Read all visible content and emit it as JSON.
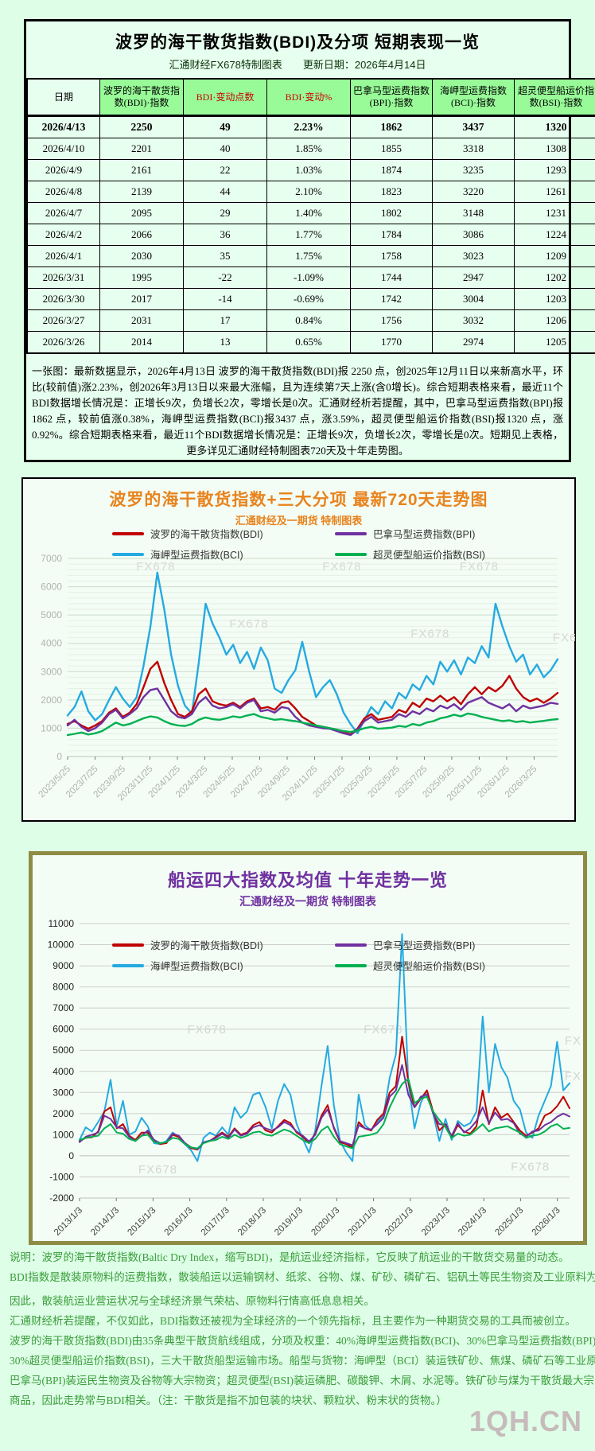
{
  "page": {
    "background": "#defee7",
    "watermark": "1QH.CN"
  },
  "colors": {
    "bdi_red": "#c00000",
    "bpi_purple": "#7030a0",
    "bci_cyan": "#25aae1",
    "bsi_green": "#00b050",
    "header_green": "#98fb98",
    "change_header_red": "#cc0000",
    "chart720_accent": "#e8831d",
    "chart10y_accent": "#7030a0",
    "footer_green": "#3a9d3a"
  },
  "table_panel": {
    "title": "波罗的海干散货指数(BDI)及分项  短期表现一览",
    "subtitle": "汇通财经FX678特制图表　　更新日期：2026年4月14日",
    "headers": [
      "日期",
      "波罗的海干散货指数(BDI)·指数",
      "BDI·变动点数",
      "BDI·变动%",
      "巴拿马型运费指数(BPI)·指数",
      "海岬型运费指数(BCI)·指数",
      "超灵便型船运价指数(BSI)·指数"
    ],
    "red_header_indexes": [
      2,
      3
    ],
    "green_header_indexes": [
      1,
      2,
      3,
      4,
      5,
      6
    ],
    "rows": [
      [
        "2026/4/13",
        "2250",
        "49",
        "2.23%",
        "1862",
        "3437",
        "1320"
      ],
      [
        "2026/4/10",
        "2201",
        "40",
        "1.85%",
        "1855",
        "3318",
        "1308"
      ],
      [
        "2026/4/9",
        "2161",
        "22",
        "1.03%",
        "1874",
        "3235",
        "1293"
      ],
      [
        "2026/4/8",
        "2139",
        "44",
        "2.10%",
        "1823",
        "3220",
        "1261"
      ],
      [
        "2026/4/7",
        "2095",
        "29",
        "1.40%",
        "1802",
        "3148",
        "1231"
      ],
      [
        "2026/4/2",
        "2066",
        "36",
        "1.77%",
        "1784",
        "3086",
        "1224"
      ],
      [
        "2026/4/1",
        "2030",
        "35",
        "1.75%",
        "1758",
        "3023",
        "1209"
      ],
      [
        "2026/3/31",
        "1995",
        "-22",
        "-1.09%",
        "1744",
        "2947",
        "1202"
      ],
      [
        "2026/3/30",
        "2017",
        "-14",
        "-0.69%",
        "1742",
        "3004",
        "1203"
      ],
      [
        "2026/3/27",
        "2031",
        "17",
        "0.84%",
        "1756",
        "3032",
        "1206"
      ],
      [
        "2026/3/26",
        "2014",
        "13",
        "0.65%",
        "1770",
        "2974",
        "1205"
      ]
    ],
    "note": "一张图：最新数据显示，2026年4月13日 波罗的海干散货指数(BDI)报 2250 点，创2025年12月11日以来新高水平，环比(较前值)涨2.23%，创2026年3月13日以来最大涨幅，且为连续第7天上涨(含0增长)。综合短期表格来看，最近11个BDI数据增长情况是：正增长9次，负增长2次，零增长是0次。汇通财经析若提醒，其中，巴拿马型运费指数(BPI)报 1862 点，较前值涨0.38%，海岬型运费指数(BCI)报3437 点，涨3.59%，超灵便型船运价指数(BSI)报1320 点，涨0.92%。综合短期表格来看，最近11个BDI数据增长情况是：正增长9次，负增长2次，零增长是0次。短期见上表格，更多详见汇通财经特制图表720天及十年走势图。"
  },
  "chart_data": [
    {
      "type": "line",
      "title": "波罗的海干散货指数+三大分项  最新720天走势图",
      "subtitle": "汇通财经及一期货 特制图表",
      "title_color": "#e8831d",
      "legend_position": "top",
      "grid": true,
      "ylim": [
        0,
        7000
      ],
      "y_tick_step": 1000,
      "minor_grid_step": 200,
      "x_tick_span": 0.952,
      "x_tick_labels": [
        "2023/5/25",
        "2023/7/25",
        "2023/9/25",
        "2023/11/25",
        "2024/1/25",
        "2024/3/25",
        "2024/5/25",
        "2024/7/25",
        "2024/9/25",
        "2024/11/25",
        "2025/1/25",
        "2025/3/25",
        "2025/5/25",
        "2025/7/25",
        "2025/9/25",
        "2025/11/25",
        "2026/1/25",
        "2026/3/25"
      ],
      "watermark_text": "FX678",
      "watermark_positions": [
        [
          0.14,
          0.06
        ],
        [
          0.52,
          0.06
        ],
        [
          0.8,
          0.06
        ],
        [
          0.33,
          0.35
        ],
        [
          0.7,
          0.4
        ],
        [
          0.99,
          0.42
        ]
      ],
      "series": [
        {
          "name": "波罗的海干散货指数(BDI)",
          "color": "#c00000",
          "values": [
            1150,
            1250,
            1100,
            980,
            1100,
            1250,
            1550,
            1700,
            1400,
            1550,
            1850,
            2450,
            3100,
            3350,
            2600,
            2000,
            1500,
            1400,
            1600,
            2200,
            2400,
            1950,
            1850,
            1800,
            1900,
            1750,
            1950,
            2050,
            1700,
            1750,
            1650,
            1900,
            1950,
            1700,
            1400,
            1250,
            1100,
            1050,
            1000,
            950,
            850,
            790,
            980,
            1350,
            1500,
            1300,
            1350,
            1400,
            1650,
            1550,
            1900,
            1750,
            2050,
            1950,
            2150,
            1950,
            2100,
            1850,
            2200,
            2450,
            2200,
            2450,
            2300,
            2500,
            2850,
            2400,
            2100,
            1950,
            2050,
            1900,
            2050,
            2250
          ]
        },
        {
          "name": "巴拿马型运费指数(BPI)",
          "color": "#7030a0",
          "values": [
            1100,
            1300,
            1050,
            900,
            1000,
            1200,
            1500,
            1650,
            1350,
            1500,
            1700,
            2100,
            2350,
            2400,
            2000,
            1600,
            1400,
            1350,
            1500,
            1900,
            2100,
            1800,
            1700,
            1750,
            1850,
            1700,
            1900,
            2000,
            1600,
            1650,
            1550,
            1750,
            1700,
            1400,
            1200,
            1100,
            1050,
            1000,
            980,
            900,
            820,
            760,
            950,
            1250,
            1400,
            1200,
            1250,
            1300,
            1500,
            1400,
            1600,
            1500,
            1700,
            1600,
            1800,
            1700,
            1850,
            1650,
            1900,
            2000,
            2100,
            1900,
            1800,
            1700,
            1850,
            1600,
            1800,
            1700,
            1750,
            1800,
            1900,
            1862
          ]
        },
        {
          "name": "海岬型运费指数(BCI)",
          "color": "#25aae1",
          "values": [
            1450,
            1750,
            2300,
            1600,
            1280,
            1500,
            2000,
            2450,
            2050,
            1750,
            2100,
            3200,
            4600,
            6500,
            5200,
            3600,
            2500,
            1800,
            1520,
            3300,
            5400,
            4700,
            4200,
            3600,
            3950,
            3300,
            3700,
            3100,
            3850,
            3400,
            2400,
            2250,
            2700,
            3050,
            4050,
            3000,
            2100,
            2450,
            2700,
            2200,
            1550,
            1150,
            820,
            1300,
            1750,
            1500,
            1950,
            1700,
            2250,
            2050,
            2550,
            2350,
            2850,
            2550,
            3350,
            3000,
            3400,
            2900,
            3500,
            3300,
            3900,
            3500,
            5400,
            4600,
            3900,
            3350,
            3600,
            2900,
            3250,
            2800,
            3050,
            3437
          ]
        },
        {
          "name": "超灵便型船运价指数(BSI)",
          "color": "#00b050",
          "values": [
            760,
            800,
            850,
            780,
            820,
            900,
            1050,
            1200,
            1100,
            1150,
            1250,
            1350,
            1420,
            1380,
            1250,
            1150,
            1100,
            1080,
            1150,
            1300,
            1380,
            1320,
            1300,
            1350,
            1420,
            1380,
            1450,
            1500,
            1400,
            1350,
            1300,
            1320,
            1280,
            1250,
            1200,
            1150,
            1100,
            1050,
            1000,
            950,
            900,
            870,
            920,
            1000,
            1050,
            980,
            1000,
            1020,
            1080,
            1050,
            1150,
            1100,
            1200,
            1250,
            1350,
            1400,
            1480,
            1420,
            1520,
            1480,
            1400,
            1350,
            1300,
            1250,
            1280,
            1220,
            1250,
            1200,
            1230,
            1260,
            1300,
            1320
          ]
        }
      ]
    },
    {
      "type": "line",
      "title": "船运四大指数及均值 十年走势一览",
      "subtitle": "汇通财经及一期货 特制图表",
      "title_color": "#7030a0",
      "legend_position": "top",
      "grid": true,
      "ylim": [
        -2000,
        11000
      ],
      "y_tick_step": 1000,
      "x_tick_span": 0.975,
      "x_tick_labels": [
        "2013/1/3",
        "2014/1/3",
        "2015/1/3",
        "2016/1/3",
        "2017/1/3",
        "2018/1/3",
        "2019/1/3",
        "2020/1/3",
        "2021/1/3",
        "2022/1/3",
        "2023/1/3",
        "2024/1/3",
        "2025/1/3",
        "2026/1/3"
      ],
      "watermark_text": "FX678",
      "watermark_positions": [
        [
          0.22,
          0.4
        ],
        [
          0.58,
          0.4
        ],
        [
          0.99,
          0.44
        ],
        [
          0.12,
          0.91
        ],
        [
          0.88,
          0.9
        ],
        [
          0.99,
          0.57
        ]
      ],
      "series": [
        {
          "name": "波罗的海干散货指数(BDI)",
          "color": "#c00000",
          "values": [
            700,
            850,
            880,
            1150,
            2100,
            2300,
            1300,
            1500,
            950,
            750,
            1100,
            1100,
            750,
            560,
            600,
            1000,
            890,
            580,
            360,
            290,
            620,
            700,
            900,
            1100,
            900,
            1300,
            1000,
            1100,
            1450,
            1600,
            1200,
            1100,
            1400,
            1700,
            1550,
            1100,
            900,
            600,
            1050,
            1900,
            2400,
            1300,
            650,
            550,
            400,
            1600,
            1300,
            1200,
            1700,
            2000,
            3000,
            3300,
            5650,
            3500,
            2300,
            2700,
            3100,
            2100,
            1200,
            1500,
            900,
            1450,
            1150,
            1050,
            1400,
            3100,
            1500,
            2300,
            1800,
            2000,
            1600,
            1200,
            950,
            1100,
            1300,
            1900,
            2050,
            2350,
            2800,
            2250
          ]
        },
        {
          "name": "巴拿马型运费指数(BPI)",
          "color": "#7030a0",
          "values": [
            650,
            900,
            1000,
            1100,
            1900,
            1750,
            1350,
            1300,
            900,
            700,
            950,
            1200,
            750,
            600,
            650,
            1050,
            950,
            600,
            400,
            310,
            640,
            720,
            850,
            1050,
            850,
            1250,
            950,
            1050,
            1350,
            1450,
            1300,
            1200,
            1350,
            1600,
            1450,
            1150,
            950,
            680,
            1000,
            1800,
            2200,
            1350,
            700,
            600,
            500,
            1450,
            1300,
            1250,
            1500,
            1800,
            2800,
            3100,
            4300,
            2900,
            2300,
            2800,
            2900,
            2000,
            1500,
            1450,
            950,
            1550,
            1100,
            1300,
            1650,
            2300,
            1550,
            2050,
            1700,
            1750,
            1550,
            1050,
            900,
            1150,
            1200,
            1450,
            1600,
            1850,
            2000,
            1862
          ]
        },
        {
          "name": "海岬型运费指数(BCI)",
          "color": "#25aae1",
          "values": [
            750,
            1350,
            1150,
            1600,
            2100,
            3600,
            1400,
            2600,
            1000,
            1150,
            1800,
            1400,
            600,
            550,
            700,
            1100,
            900,
            550,
            250,
            -250,
            850,
            1100,
            950,
            1350,
            1000,
            2300,
            1800,
            2100,
            2900,
            3000,
            2300,
            1300,
            2600,
            3400,
            2900,
            1500,
            800,
            150,
            1200,
            3300,
            5200,
            2400,
            700,
            150,
            -250,
            2900,
            1450,
            1200,
            1600,
            1900,
            3700,
            4800,
            10500,
            3500,
            1300,
            2500,
            3100,
            2000,
            700,
            1750,
            750,
            1650,
            1400,
            1550,
            2100,
            6600,
            3000,
            5300,
            4200,
            3700,
            2600,
            2200,
            1100,
            850,
            1900,
            2600,
            3300,
            5400,
            3100,
            3437
          ]
        },
        {
          "name": "超灵便型船运价指数(BSI)",
          "color": "#00b050",
          "values": [
            750,
            850,
            900,
            950,
            1300,
            1500,
            1100,
            1050,
            800,
            700,
            950,
            1000,
            650,
            600,
            650,
            850,
            800,
            550,
            400,
            350,
            600,
            700,
            750,
            900,
            800,
            1000,
            850,
            950,
            1100,
            1150,
            1000,
            950,
            1100,
            1250,
            1150,
            950,
            750,
            600,
            800,
            1200,
            1400,
            900,
            550,
            450,
            350,
            900,
            950,
            1000,
            1100,
            1500,
            2300,
            2900,
            3400,
            3650,
            2500,
            2700,
            2800,
            2100,
            1700,
            1350,
            850,
            1050,
            950,
            1000,
            1250,
            1500,
            1150,
            1300,
            1350,
            1400,
            1250,
            1100,
            850,
            950,
            1000,
            1150,
            1400,
            1500,
            1280,
            1320
          ]
        }
      ]
    }
  ],
  "footer": {
    "lines": [
      "说明：波罗的海干散货指数(Baltic Dry Index，缩写BDI)，是航运业经济指标，它反映了航运业的干散货交易量的动态。",
      "BDI指数是散装原物料的运费指数，散装船运以运输钢材、纸浆、谷物、煤、矿砂、磷矿石、铝矾土等民生物资及工业原料为主。",
      "因此，散装航运业营运状况与全球经济景气荣枯、原物料行情高低息息相关。",
      "汇通财经析若提醒，不仅如此，BDI指数还被视为全球经济的一个领先指标，且主要作为一种期货交易的工具而被创立。",
      "波罗的海干散货指数(BDI)由35条典型干散货航线组成，分项及权重：40%海岬型运费指数(BCI)、30%巴拿马型运费指数(BPI)、",
      "30%超灵便型船运价指数(BSI)，三大干散货船型运输市场。船型与货物：海岬型（BCI）装运铁矿砂、焦煤、磷矿石等工业原料",
      "巴拿马(BPI)装运民生物资及谷物等大宗物资；超灵便型(BSI)装运磷肥、碳酸钾、木屑、水泥等。铁矿砂与煤为干散货最大宗",
      "商品，因此走势常与BDI相关。（注：干散货是指不加包装的块状、颗粒状、粉末状的货物。）"
    ]
  }
}
